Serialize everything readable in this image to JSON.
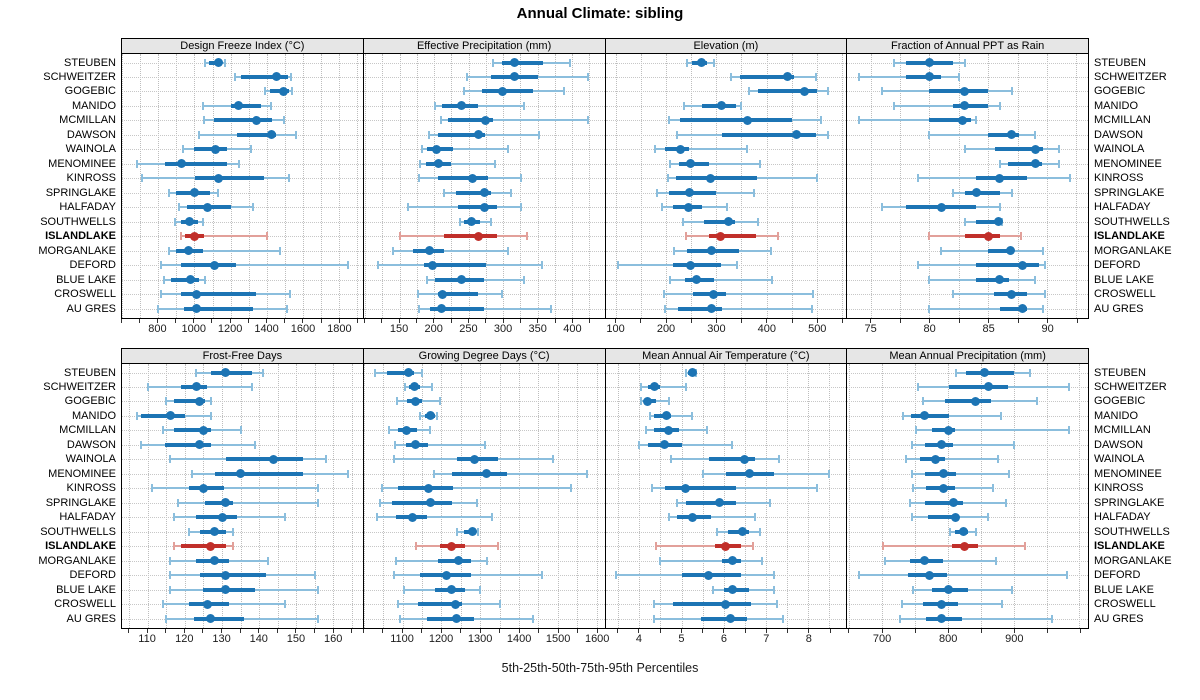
{
  "title": "Annual Climate: sibling",
  "caption": "5th-25th-50th-75th-95th Percentiles",
  "colors": {
    "bar_dark": "#1C74B4",
    "bar_light": "#8BBEDD",
    "highlight_dark": "#C12F2A",
    "highlight_light": "#E2A09A",
    "strip_bg": "#E6E6E6",
    "panel_border": "#000000",
    "grid": "#BDBDBD",
    "tick_text": "#1A1A1A"
  },
  "sites": [
    "STEUBEN",
    "SCHWEITZER",
    "GOGEBIC",
    "MANIDO",
    "MCMILLAN",
    "DAWSON",
    "WAINOLA",
    "MENOMINEE",
    "KINROSS",
    "SPRINGLAKE",
    "HALFADAY",
    "SOUTHWELLS",
    "ISLANDLAKE",
    "MORGANLAKE",
    "DEFORD",
    "BLUE LAKE",
    "CROSWELL",
    "AU GRES"
  ],
  "highlight_site": "ISLANDLAKE",
  "chart_data": {
    "type": "dot-interval",
    "description": "Horizontal 5th-25th-50th-75th-95th percentile intervals per site; thin line 5th-95th with end caps, thick line 25th-75th, dot at median. ISLANDLAKE row highlighted red. Trellis layout 2 rows x 4 columns, site labels on both sides.",
    "title": "Annual Climate: sibling",
    "caption": "5th-25th-50th-75th-95th Percentiles",
    "categories": [
      "STEUBEN",
      "SCHWEITZER",
      "GOGEBIC",
      "MANIDO",
      "MCMILLAN",
      "DAWSON",
      "WAINOLA",
      "MENOMINEE",
      "KINROSS",
      "SPRINGLAKE",
      "HALFADAY",
      "SOUTHWELLS",
      "ISLANDLAKE",
      "MORGANLAKE",
      "DEFORD",
      "BLUE LAKE",
      "CROSWELL",
      "AU GRES"
    ],
    "highlight_category": "ISLANDLAKE",
    "grid": "dotted",
    "panels": [
      {
        "title": "Design Freeze Index (°C)",
        "xlim": [
          600,
          1930
        ],
        "ticks": [
          800,
          1000,
          1200,
          1400,
          1600,
          1800
        ],
        "grid_step": 100,
        "values": [
          [
            1060,
            1080,
            1135,
            1155,
            1170
          ],
          [
            1225,
            1255,
            1455,
            1515,
            1535
          ],
          [
            1390,
            1420,
            1490,
            1525,
            1540
          ],
          [
            1045,
            1200,
            1245,
            1370,
            1425
          ],
          [
            1055,
            1110,
            1345,
            1430,
            1495
          ],
          [
            1025,
            1235,
            1425,
            1450,
            1560
          ],
          [
            935,
            1000,
            1115,
            1180,
            1310
          ],
          [
            685,
            840,
            930,
            1180,
            1245
          ],
          [
            710,
            1005,
            1135,
            1385,
            1520
          ],
          [
            860,
            900,
            1000,
            1085,
            1130
          ],
          [
            915,
            960,
            1070,
            1200,
            1325
          ],
          [
            895,
            925,
            975,
            1020,
            1050
          ],
          [
            925,
            950,
            1000,
            1055,
            1400
          ],
          [
            860,
            900,
            970,
            1045,
            1475
          ],
          [
            815,
            925,
            1110,
            1230,
            1850
          ],
          [
            830,
            870,
            980,
            1025,
            1060
          ],
          [
            815,
            925,
            1010,
            1340,
            1530
          ],
          [
            800,
            940,
            1010,
            1325,
            1510
          ]
        ]
      },
      {
        "title": "Effective Precipitation (mm)",
        "xlim": [
          98,
          447
        ],
        "ticks": [
          150,
          200,
          250,
          300,
          350,
          400
        ],
        "grid_step": 25,
        "values": [
          [
            286,
            298,
            317,
            358,
            397
          ],
          [
            247,
            282,
            316,
            351,
            423
          ],
          [
            244,
            270,
            299,
            343,
            388
          ],
          [
            201,
            212,
            239,
            263,
            331
          ],
          [
            210,
            220,
            274,
            285,
            423
          ],
          [
            193,
            205,
            265,
            274,
            352
          ],
          [
            183,
            190,
            203,
            228,
            307
          ],
          [
            180,
            188,
            207,
            225,
            288
          ],
          [
            178,
            206,
            255,
            278,
            326
          ],
          [
            215,
            232,
            273,
            283,
            311
          ],
          [
            162,
            234,
            273,
            291,
            326
          ],
          [
            238,
            244,
            254,
            267,
            283
          ],
          [
            151,
            214,
            265,
            291,
            334
          ],
          [
            140,
            170,
            193,
            214,
            307
          ],
          [
            119,
            185,
            198,
            275,
            356
          ],
          [
            189,
            202,
            239,
            273,
            331
          ],
          [
            176,
            205,
            212,
            263,
            299
          ],
          [
            178,
            194,
            210,
            273,
            369
          ]
        ]
      },
      {
        "title": "Elevation (m)",
        "xlim": [
          79,
          559
        ],
        "ticks": [
          100,
          200,
          300,
          400,
          500
        ],
        "grid_step": 50,
        "values": [
          [
            241,
            251,
            270,
            282,
            296
          ],
          [
            329,
            347,
            442,
            455,
            498
          ],
          [
            365,
            383,
            476,
            500,
            523
          ],
          [
            235,
            272,
            310,
            340,
            350
          ],
          [
            206,
            228,
            362,
            450,
            508
          ],
          [
            221,
            312,
            460,
            498,
            523
          ],
          [
            178,
            197,
            228,
            246,
            361
          ],
          [
            208,
            226,
            248,
            286,
            387
          ],
          [
            204,
            219,
            288,
            382,
            500
          ],
          [
            182,
            206,
            246,
            299,
            375
          ],
          [
            191,
            213,
            244,
            272,
            321
          ],
          [
            233,
            276,
            324,
            337,
            383
          ],
          [
            239,
            286,
            309,
            379,
            422
          ],
          [
            215,
            241,
            290,
            345,
            408
          ],
          [
            103,
            213,
            248,
            310,
            342
          ],
          [
            208,
            237,
            261,
            296,
            410
          ],
          [
            195,
            254,
            294,
            319,
            493
          ],
          [
            197,
            224,
            290,
            312,
            490
          ]
        ]
      },
      {
        "title": "Fraction of Annual PPT as Rain",
        "xlim": [
          73,
          93.5
        ],
        "ticks": [
          75,
          80,
          85,
          90
        ],
        "grid_step": 2.5,
        "values": [
          [
            77,
            78,
            80,
            82,
            83
          ],
          [
            74,
            78,
            80,
            81,
            82.5
          ],
          [
            76,
            80,
            83,
            85,
            87
          ],
          [
            77,
            82,
            83,
            85,
            86
          ],
          [
            74,
            80,
            82.8,
            83.5,
            84
          ],
          [
            80,
            85,
            87,
            87.6,
            89
          ],
          [
            83,
            85.6,
            89,
            89.7,
            91
          ],
          [
            86,
            86.7,
            89,
            89.6,
            91
          ],
          [
            79,
            84,
            86,
            88.3,
            92
          ],
          [
            82,
            83,
            84,
            86,
            87
          ],
          [
            76,
            78,
            81,
            84,
            86
          ],
          [
            83,
            84,
            85.9,
            86,
            86.2
          ],
          [
            80,
            83,
            85,
            86,
            87.8
          ],
          [
            81,
            85,
            86.9,
            87.1,
            89.7
          ],
          [
            79,
            84,
            87.9,
            89.3,
            89.8
          ],
          [
            80,
            84,
            86,
            86.8,
            89
          ],
          [
            82,
            85.5,
            87,
            88.3,
            89.8
          ],
          [
            80,
            86,
            87.9,
            88.3,
            89.7
          ]
        ]
      },
      {
        "title": "Frost-Free Days",
        "xlim": [
          103,
          168
        ],
        "ticks": [
          110,
          120,
          130,
          140,
          150,
          160
        ],
        "grid_step": 5,
        "values": [
          [
            123,
            127,
            131,
            138,
            141
          ],
          [
            110,
            119,
            123,
            126,
            138
          ],
          [
            115,
            117,
            124,
            125.5,
            127
          ],
          [
            107,
            108,
            116,
            120,
            127
          ],
          [
            114,
            117,
            125,
            127,
            135
          ],
          [
            108,
            114.5,
            124,
            127,
            139
          ],
          [
            116,
            131,
            144,
            152,
            158
          ],
          [
            122,
            128,
            135,
            152,
            164
          ],
          [
            111,
            121,
            125,
            130.5,
            156
          ],
          [
            118,
            125.5,
            131,
            133,
            156
          ],
          [
            117,
            123,
            130,
            134,
            147
          ],
          [
            121,
            124,
            128,
            131,
            133
          ],
          [
            117,
            119,
            127,
            131,
            133
          ],
          [
            116,
            123,
            128,
            132,
            142.5
          ],
          [
            116,
            124,
            131,
            142,
            155
          ],
          [
            116,
            125,
            131,
            139,
            156
          ],
          [
            114,
            121,
            126,
            132,
            147
          ],
          [
            115,
            122.5,
            127,
            136,
            156
          ]
        ]
      },
      {
        "title": "Growing Degree Days (°C)",
        "xlim": [
          1000,
          1620
        ],
        "ticks": [
          1100,
          1200,
          1300,
          1400,
          1500,
          1600
        ],
        "grid_step": 50,
        "values": [
          [
            1030,
            1060,
            1115,
            1130,
            1150
          ],
          [
            1106,
            1117,
            1130,
            1145,
            1175
          ],
          [
            1085,
            1111,
            1134,
            1151,
            1197
          ],
          [
            1145,
            1157,
            1171,
            1183,
            1188
          ],
          [
            1066,
            1089,
            1111,
            1137,
            1171
          ],
          [
            1080,
            1109,
            1132,
            1166,
            1312
          ],
          [
            1077,
            1240,
            1286,
            1346,
            1488
          ],
          [
            1180,
            1226,
            1317,
            1368,
            1574
          ],
          [
            1048,
            1089,
            1166,
            1231,
            1535
          ],
          [
            1042,
            1072,
            1171,
            1226,
            1291
          ],
          [
            1034,
            1083,
            1126,
            1163,
            1331
          ],
          [
            1240,
            1258,
            1281,
            1288,
            1293
          ],
          [
            1134,
            1197,
            1226,
            1260,
            1346
          ],
          [
            1083,
            1192,
            1243,
            1277,
            1317
          ],
          [
            1077,
            1145,
            1214,
            1277,
            1458
          ],
          [
            1103,
            1183,
            1226,
            1260,
            1300
          ],
          [
            1089,
            1140,
            1235,
            1252,
            1351
          ],
          [
            1094,
            1163,
            1240,
            1283,
            1437
          ]
        ]
      },
      {
        "title": "Mean Annual Air Temperature (°C)",
        "xlim": [
          3.2,
          8.9
        ],
        "ticks": [
          4,
          5,
          6,
          7,
          8
        ],
        "grid_step": 0.5,
        "values": [
          [
            5.1,
            5.15,
            5.25,
            5.3,
            5.35
          ],
          [
            4.05,
            4.2,
            4.35,
            4.5,
            5.1
          ],
          [
            4.05,
            4.15,
            4.2,
            4.4,
            4.7
          ],
          [
            4.25,
            4.35,
            4.65,
            4.75,
            5.25
          ],
          [
            4.15,
            4.35,
            4.7,
            4.95,
            5.6
          ],
          [
            4.0,
            4.2,
            4.6,
            5.0,
            6.2
          ],
          [
            4.75,
            5.65,
            6.5,
            6.75,
            7.3
          ],
          [
            5.5,
            6.05,
            6.6,
            7.2,
            8.5
          ],
          [
            4.3,
            4.6,
            5.1,
            6.3,
            8.2
          ],
          [
            4.9,
            5.1,
            5.9,
            6.3,
            7.1
          ],
          [
            4.7,
            4.9,
            5.25,
            5.7,
            6.75
          ],
          [
            5.85,
            6.1,
            6.45,
            6.6,
            6.85
          ],
          [
            4.4,
            5.8,
            6.05,
            6.4,
            6.7
          ],
          [
            4.5,
            5.95,
            6.2,
            6.4,
            6.9
          ],
          [
            3.45,
            5.0,
            5.65,
            6.4,
            7.2
          ],
          [
            5.75,
            6.0,
            6.2,
            6.6,
            7.2
          ],
          [
            4.35,
            4.8,
            6.05,
            6.65,
            7.25
          ],
          [
            4.35,
            5.45,
            6.15,
            6.55,
            7.4
          ]
        ]
      },
      {
        "title": "Mean Annual Precipitation (mm)",
        "xlim": [
          647,
          1013
        ],
        "ticks": [
          700,
          800,
          900
        ],
        "grid_step": 50,
        "values": [
          [
            813,
            828,
            856,
            901,
            925
          ],
          [
            754,
            801,
            861,
            891,
            984
          ],
          [
            762,
            796,
            842,
            866,
            935
          ],
          [
            732,
            744,
            765,
            801,
            881
          ],
          [
            752,
            776,
            801,
            811,
            984
          ],
          [
            745,
            765,
            791,
            808,
            901
          ],
          [
            737,
            757,
            781,
            796,
            876
          ],
          [
            745,
            765,
            793,
            813,
            893
          ],
          [
            747,
            767,
            793,
            811,
            868
          ],
          [
            742,
            765,
            808,
            823,
            888
          ],
          [
            745,
            770,
            811,
            816,
            861
          ],
          [
            803,
            811,
            823,
            831,
            843
          ],
          [
            702,
            806,
            826,
            846,
            917
          ],
          [
            705,
            742,
            765,
            793,
            873
          ],
          [
            665,
            740,
            772,
            798,
            981
          ],
          [
            747,
            776,
            801,
            831,
            898
          ],
          [
            730,
            762,
            791,
            816,
            883
          ],
          [
            727,
            767,
            791,
            821,
            959
          ]
        ]
      }
    ],
    "layout": {
      "rows": 2,
      "cols": 4,
      "panel_order_row1": [
        0,
        1,
        2,
        3
      ],
      "panel_order_row2": [
        4,
        5,
        6,
        7
      ]
    }
  }
}
